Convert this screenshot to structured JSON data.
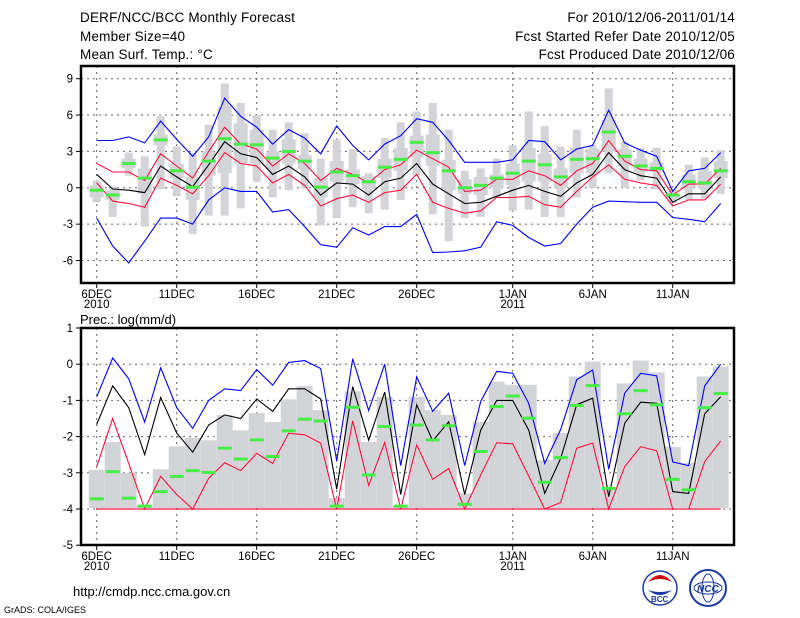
{
  "header": {
    "title": "DERF/NCC/BCC Monthly Forecast",
    "member_size": "Member Size=40",
    "variable": "Mean Surf. Temp.: °C",
    "period": "For 2010/12/06-2011/01/14",
    "refer_date": "Fcst Started Refer Date 2010/12/05",
    "produced_date": "Fcst Produced Date 2010/12/06"
  },
  "footer": {
    "url": "http://cmdp.ncc.cma.gov.cn",
    "credit": "GrADS: COLA/IGES",
    "logos": [
      "BCC",
      "NCC"
    ]
  },
  "colors": {
    "upper_lower": "#0000ff",
    "mean": "#000000",
    "spread": "#ff1040",
    "obs": "#44ee44",
    "box": "#d3d4d8"
  },
  "chart_data": [
    {
      "type": "box-line",
      "title": "Mean Surf. Temp.: °C",
      "ylim": [
        -8,
        10
      ],
      "yticks": [
        9,
        6,
        3,
        0,
        -3,
        -6
      ],
      "xtick_labels": [
        [
          "6DEC",
          "2010"
        ],
        [
          "11DEC",
          ""
        ],
        [
          "16DEC",
          ""
        ],
        [
          "21DEC",
          ""
        ],
        [
          "26DEC",
          ""
        ],
        [
          "1JAN",
          "2011"
        ],
        [
          "6JAN",
          ""
        ],
        [
          "11JAN",
          ""
        ]
      ],
      "xtick_days": [
        0,
        5,
        10,
        15,
        20,
        26,
        31,
        36
      ],
      "grid": true,
      "days": 40,
      "series": [
        {
          "name": "max",
          "color": "#0000ff",
          "values": [
            3.9,
            3.9,
            4.2,
            3.7,
            5.5,
            4.0,
            2.6,
            4.2,
            7.4,
            5.9,
            5.0,
            3.6,
            4.8,
            4.1,
            2.8,
            5.1,
            3.5,
            2.3,
            3.6,
            4.3,
            5.7,
            5.4,
            3.9,
            2.1,
            2.1,
            2.1,
            2.3,
            3.9,
            3.8,
            2.3,
            3.2,
            3.5,
            6.4,
            3.7,
            3.1,
            2.6,
            -0.3,
            1.4,
            1.6,
            2.9
          ]
        },
        {
          "name": "upper",
          "color": "#ff1040",
          "values": [
            2.0,
            1.3,
            1.3,
            0.6,
            2.8,
            1.8,
            0.8,
            3.0,
            5.0,
            3.6,
            3.2,
            1.8,
            2.8,
            2.0,
            0.6,
            1.6,
            1.1,
            0.4,
            1.5,
            1.9,
            3.1,
            2.4,
            1.7,
            -0.3,
            -0.2,
            0.7,
            0.7,
            1.4,
            1.0,
            0.2,
            1.4,
            2.0,
            3.9,
            2.2,
            1.5,
            1.4,
            -0.6,
            0.3,
            0.3,
            1.6
          ]
        },
        {
          "name": "mean",
          "color": "#000000",
          "values": [
            1.1,
            -0.1,
            -0.2,
            -0.4,
            1.8,
            0.9,
            0.1,
            1.9,
            3.8,
            2.8,
            2.5,
            1.1,
            1.8,
            0.9,
            -0.6,
            0.4,
            0.3,
            -0.6,
            0.5,
            0.8,
            2.0,
            0.3,
            -0.5,
            -1.3,
            -1.2,
            -0.7,
            -0.2,
            0.2,
            -0.3,
            -0.7,
            0.4,
            1.1,
            2.9,
            1.5,
            1.0,
            0.8,
            -1.2,
            -0.5,
            -0.5,
            0.9
          ]
        },
        {
          "name": "lower",
          "color": "#ff1040",
          "values": [
            0.4,
            -1.1,
            -1.3,
            -1.6,
            0.8,
            0.2,
            -0.5,
            1.0,
            2.9,
            2.0,
            1.8,
            0.4,
            1.1,
            0.2,
            -1.5,
            -0.9,
            -0.6,
            -1.2,
            -0.4,
            -0.2,
            1.1,
            -1.2,
            -1.7,
            -2.1,
            -1.9,
            -0.8,
            -0.8,
            -0.7,
            -1.4,
            -1.6,
            -0.3,
            0.9,
            1.9,
            0.7,
            0.4,
            0.2,
            -1.5,
            -1.0,
            -1.0,
            0.3
          ]
        },
        {
          "name": "min",
          "color": "#0000ff",
          "values": [
            -2.5,
            -4.8,
            -6.2,
            -4.4,
            -2.5,
            -2.5,
            -3.0,
            -1.0,
            0.0,
            -0.3,
            -0.3,
            -2.0,
            -1.8,
            -3.2,
            -4.7,
            -4.9,
            -3.3,
            -3.9,
            -3.2,
            -3.2,
            -2.2,
            -5.35,
            -5.3,
            -5.2,
            -4.9,
            -2.8,
            -3.1,
            -4.1,
            -4.8,
            -4.6,
            -3.0,
            -1.6,
            -1.1,
            -1.15,
            -1.2,
            -1.2,
            -2.45,
            -2.6,
            -2.8,
            -1.3
          ]
        }
      ],
      "observed": [
        -0.2,
        -0.6,
        2.0,
        0.8,
        3.95,
        1.4,
        0.05,
        2.2,
        4.05,
        3.6,
        3.55,
        2.45,
        3.0,
        2.2,
        0.05,
        1.3,
        1.0,
        0.5,
        1.7,
        2.35,
        3.75,
        2.9,
        1.4,
        0.0,
        0.2,
        0.8,
        1.2,
        2.2,
        1.9,
        0.9,
        2.35,
        2.4,
        4.6,
        2.6,
        1.8,
        1.6,
        -0.6,
        0.5,
        0.4,
        1.4
      ],
      "boxes": [
        [
          -1.2,
          -0.8,
          0.2,
          0.6
        ],
        [
          -2.4,
          -1.0,
          -0.2,
          0.1
        ],
        [
          1.0,
          1.6,
          2.4,
          2.9
        ],
        [
          -3.2,
          -0.5,
          1.6,
          2.6
        ],
        [
          -0.1,
          3.5,
          4.4,
          5.9
        ],
        [
          -0.7,
          0.8,
          2.0,
          3.4
        ],
        [
          -3.8,
          -1.0,
          0.9,
          2.9
        ],
        [
          -2.3,
          1.0,
          3.0,
          5.2
        ],
        [
          -2.3,
          1.2,
          6.7,
          8.6
        ],
        [
          -1.7,
          2.0,
          5.3,
          7.0
        ],
        [
          0.5,
          2.0,
          4.8,
          6.0
        ],
        [
          -0.8,
          1.5,
          3.0,
          4.8
        ],
        [
          -0.2,
          2.0,
          4.0,
          5.4
        ],
        [
          0.0,
          1.5,
          2.7,
          4.5
        ],
        [
          -3.1,
          -0.8,
          0.8,
          2.4
        ],
        [
          -2.5,
          0.5,
          2.2,
          4.0
        ],
        [
          -1.6,
          0.3,
          1.5,
          3.2
        ],
        [
          -2.1,
          -0.1,
          1.0,
          1.2
        ],
        [
          -1.8,
          0.8,
          2.4,
          4.1
        ],
        [
          -1.0,
          1.4,
          3.3,
          5.4
        ],
        [
          1.0,
          2.5,
          4.3,
          6.3
        ],
        [
          -2.2,
          1.8,
          4.4,
          7.0
        ],
        [
          -4.4,
          -0.2,
          2.3,
          4.8
        ],
        [
          -2.5,
          -0.5,
          0.7,
          1.4
        ],
        [
          -2.4,
          -0.6,
          0.9,
          1.6
        ],
        [
          -0.8,
          0.0,
          1.1,
          2.4
        ],
        [
          -1.9,
          0.2,
          2.0,
          3.5
        ],
        [
          -1.8,
          0.5,
          3.3,
          6.3
        ],
        [
          -2.4,
          0.5,
          2.8,
          5.1
        ],
        [
          -2.4,
          0.0,
          1.6,
          3.4
        ],
        [
          -0.8,
          1.2,
          3.3,
          4.8
        ],
        [
          0.0,
          1.2,
          3.2,
          3.5
        ],
        [
          1.2,
          3.0,
          5.6,
          8.2
        ],
        [
          0.0,
          1.8,
          3.2,
          3.8
        ],
        [
          0.6,
          1.3,
          2.4,
          3.3
        ],
        [
          -0.1,
          1.3,
          2.1,
          3.3
        ],
        [
          -1.3,
          -0.9,
          -0.5,
          -0.1
        ],
        [
          -1.0,
          0.0,
          1.1,
          1.9
        ],
        [
          -0.9,
          -0.1,
          1.4,
          2.5
        ],
        [
          -0.5,
          0.8,
          2.2,
          3.1
        ]
      ]
    },
    {
      "type": "box-line",
      "title": "Prec.: log(mm/d)",
      "ylim": [
        -5,
        1
      ],
      "yticks": [
        1,
        0,
        -1,
        -2,
        -3,
        -4,
        -5
      ],
      "xtick_labels": [
        [
          "6DEC",
          "2010"
        ],
        [
          "11DEC",
          ""
        ],
        [
          "16DEC",
          ""
        ],
        [
          "21DEC",
          ""
        ],
        [
          "26DEC",
          ""
        ],
        [
          "1JAN",
          "2011"
        ],
        [
          "6JAN",
          ""
        ],
        [
          "11JAN",
          ""
        ]
      ],
      "xtick_days": [
        0,
        5,
        10,
        15,
        20,
        26,
        31,
        36
      ],
      "grid": true,
      "days": 40,
      "baseline": -4,
      "series": [
        {
          "name": "max",
          "color": "#0000ff",
          "values": [
            -0.9,
            0.17,
            -0.4,
            -1.6,
            -0.1,
            -1.2,
            -1.77,
            -1.0,
            -0.68,
            -0.73,
            -0.15,
            -0.58,
            0.05,
            0.1,
            -0.12,
            -2.67,
            0.15,
            -1.28,
            0.0,
            -2.8,
            -0.35,
            -1.3,
            -0.8,
            -2.8,
            -1.03,
            -0.2,
            -0.25,
            -1.08,
            -2.74,
            -1.8,
            -0.43,
            -0.16,
            -2.9,
            -0.8,
            -0.25,
            -0.32,
            -2.7,
            -2.8,
            -0.6,
            0.0
          ]
        },
        {
          "name": "mean",
          "color": "#000000",
          "values": [
            -1.66,
            -0.6,
            -1.2,
            -2.5,
            -0.92,
            -1.9,
            -2.43,
            -1.68,
            -1.4,
            -1.5,
            -0.96,
            -1.3,
            -0.68,
            -0.68,
            -0.96,
            -3.45,
            -0.62,
            -2.1,
            -0.77,
            -3.6,
            -1.12,
            -2.12,
            -1.59,
            -3.6,
            -1.82,
            -1.0,
            -1.0,
            -1.82,
            -3.57,
            -2.6,
            -1.12,
            -0.94,
            -3.66,
            -1.63,
            -1.05,
            -1.08,
            -3.52,
            -3.57,
            -1.37,
            -0.9
          ]
        },
        {
          "name": "lower",
          "color": "#ff1040",
          "values": [
            -2.83,
            -1.5,
            -2.74,
            -4.0,
            -3.1,
            -3.6,
            -4.0,
            -3.15,
            -2.72,
            -2.94,
            -2.46,
            -2.74,
            -1.91,
            -1.95,
            -2.18,
            -4.0,
            -1.56,
            -3.35,
            -2.16,
            -4.0,
            -2.23,
            -3.18,
            -2.88,
            -4.0,
            -3.06,
            -2.17,
            -2.2,
            -3.09,
            -4.0,
            -3.82,
            -2.32,
            -2.18,
            -4.0,
            -2.83,
            -2.28,
            -2.39,
            -4.0,
            -4.0,
            -2.69,
            -2.12
          ]
        }
      ],
      "observed": [
        -3.72,
        -2.97,
        -3.7,
        -3.92,
        -3.52,
        -3.1,
        -2.94,
        -2.99,
        -2.32,
        -2.62,
        -2.09,
        -2.55,
        -1.84,
        -1.52,
        -1.57,
        -3.92,
        -1.19,
        -3.06,
        -1.72,
        -3.92,
        -1.68,
        -2.09,
        -1.7,
        -3.87,
        -2.41,
        -1.17,
        -0.88,
        -1.49,
        -3.26,
        -2.58,
        -1.14,
        -0.59,
        -3.43,
        -1.37,
        -0.73,
        -1.12,
        -3.18,
        -3.47,
        -1.2,
        -0.81
      ],
      "bar_max": [
        -2.92,
        -2.15,
        -3.0,
        -3.9,
        -2.9,
        -2.27,
        -2.03,
        -2.1,
        -1.4,
        -1.83,
        -1.35,
        -1.6,
        -0.97,
        -0.6,
        -1.27,
        -3.7,
        -0.75,
        -2.15,
        -0.9,
        -3.9,
        -0.9,
        -1.27,
        -1.4,
        -3.57,
        -1.59,
        -0.48,
        -0.57,
        -0.57,
        -2.65,
        -1.9,
        -0.34,
        0.07,
        -3.43,
        -0.53,
        0.1,
        -0.23,
        -2.28,
        -2.72,
        -0.34,
        -0.06
      ]
    }
  ]
}
